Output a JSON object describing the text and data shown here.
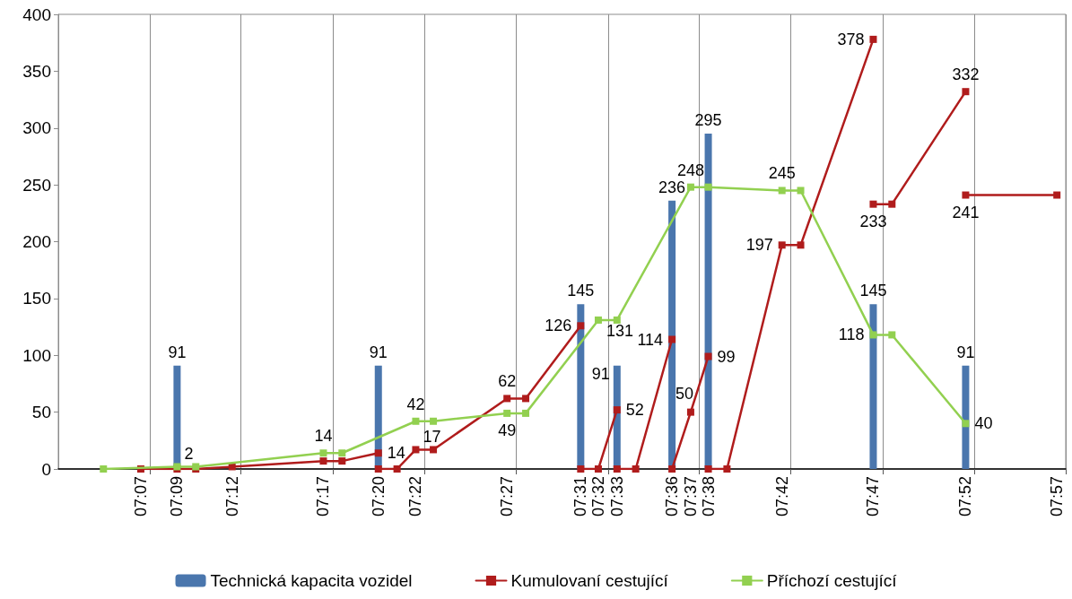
{
  "chart_data": {
    "type": "line",
    "xlim": [
      7.042,
      7.958
    ],
    "xticks": [
      {
        "value": 7.117,
        "label": "07:07"
      },
      {
        "value": 7.125,
        "label": null
      },
      {
        "value": 7.15,
        "label": "07:09"
      },
      {
        "value": 7.2,
        "label": "07:12"
      },
      {
        "value": 7.208,
        "label": null
      },
      {
        "value": 7.283,
        "label": "07:17"
      },
      {
        "value": 7.292,
        "label": null
      },
      {
        "value": 7.333,
        "label": "07:20"
      },
      {
        "value": 7.367,
        "label": "07:22"
      },
      {
        "value": 7.375,
        "label": null
      },
      {
        "value": 7.45,
        "label": "07:27"
      },
      {
        "value": 7.458,
        "label": null
      },
      {
        "value": 7.517,
        "label": "07:31"
      },
      {
        "value": 7.533,
        "label": "07:32"
      },
      {
        "value": 7.542,
        "label": null
      },
      {
        "value": 7.55,
        "label": "07:33"
      },
      {
        "value": 7.6,
        "label": "07:36"
      },
      {
        "value": 7.617,
        "label": "07:37"
      },
      {
        "value": 7.625,
        "label": null
      },
      {
        "value": 7.633,
        "label": "07:38"
      },
      {
        "value": 7.7,
        "label": "07:42"
      },
      {
        "value": 7.708,
        "label": null
      },
      {
        "value": 7.783,
        "label": "07:47"
      },
      {
        "value": 7.792,
        "label": null
      },
      {
        "value": 7.867,
        "label": "07:52"
      },
      {
        "value": 7.875,
        "label": null
      },
      {
        "value": 7.95,
        "label": "07:57"
      },
      {
        "value": 7.958,
        "label": null
      }
    ],
    "ylim": [
      0,
      400
    ],
    "yticks": [
      0,
      50,
      100,
      150,
      200,
      250,
      300,
      350,
      400
    ],
    "grid": "x",
    "legend": "bottom",
    "marker": "square",
    "series": [
      {
        "name": "Technická kapacita vozidel",
        "type": "bar",
        "color": "#4a76ad",
        "x": [
          7.15,
          7.333,
          7.517,
          7.55,
          7.6,
          7.633,
          7.783,
          7.867
        ],
        "values": [
          91,
          91,
          145,
          91,
          236,
          295,
          145,
          91
        ],
        "value_labels": [
          "91",
          "91",
          "145",
          "91",
          "236",
          "295",
          "145",
          "91"
        ]
      },
      {
        "name": "Kumulovaní cestující",
        "color": "#b01c1c",
        "x": [
          7.117,
          7.15,
          7.167,
          7.2,
          7.283,
          7.3,
          7.333,
          null,
          7.333,
          7.35,
          7.367,
          7.383,
          7.45,
          7.467,
          7.517,
          null,
          7.517,
          7.533,
          7.55,
          null,
          7.55,
          7.567,
          7.6,
          null,
          7.6,
          7.617,
          7.633,
          null,
          7.633,
          7.65,
          7.7,
          7.717,
          7.783,
          null,
          7.783,
          7.8,
          7.867,
          null,
          7.867,
          7.95
        ],
        "values": [
          0,
          0,
          0,
          2,
          7,
          7,
          14,
          null,
          0,
          0,
          17,
          17,
          62,
          62,
          126,
          null,
          0,
          0,
          52,
          null,
          0,
          0,
          114,
          null,
          0,
          50,
          99,
          null,
          0,
          0,
          197,
          197,
          378,
          null,
          233,
          233,
          332,
          null,
          241,
          241
        ],
        "value_labels": [
          null,
          null,
          null,
          null,
          null,
          null,
          "14",
          null,
          null,
          null,
          "17",
          null,
          "62",
          null,
          "126",
          null,
          null,
          null,
          "52",
          null,
          null,
          null,
          "114",
          null,
          null,
          "50",
          "99",
          null,
          null,
          null,
          "197",
          null,
          "378",
          null,
          "233",
          null,
          "332",
          null,
          "241",
          null
        ]
      },
      {
        "name": "Příchozí cestující",
        "color": "#92d050",
        "x": [
          7.083,
          7.15,
          7.167,
          7.283,
          7.3,
          7.367,
          7.383,
          7.45,
          7.467,
          7.533,
          7.55,
          7.617,
          7.633,
          7.7,
          7.717,
          7.783,
          7.8,
          7.867
        ],
        "values": [
          0,
          2,
          2,
          14,
          14,
          42,
          42,
          49,
          49,
          131,
          131,
          248,
          248,
          245,
          245,
          118,
          118,
          40
        ],
        "value_labels": [
          null,
          "2",
          null,
          "14",
          null,
          "42",
          null,
          "49",
          null,
          "131",
          null,
          "248",
          null,
          "245",
          null,
          "118",
          null,
          "40"
        ]
      }
    ]
  }
}
